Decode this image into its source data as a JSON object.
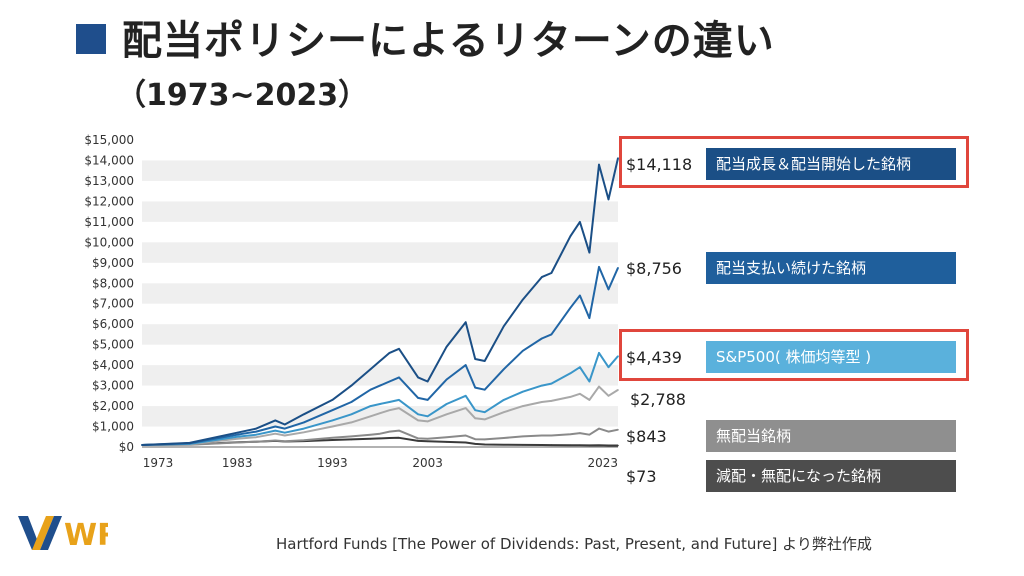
{
  "page": {
    "title": "配当ポリシーによるリターンの違い",
    "subtitle": "（1973~2023）",
    "footer": "Hartford Funds [The Power of Dividends: Past, Present, and Future] より弊社作成",
    "logo_text": "WR"
  },
  "colors": {
    "title_square": "#1f4e8c",
    "highlight_border": "#e0463c"
  },
  "chart_data": {
    "type": "line",
    "ylim": [
      0,
      15000
    ],
    "xlim": [
      1973,
      2023
    ],
    "y_ticks": [
      "$0",
      "$1,000",
      "$2,000",
      "$3,000",
      "$4,000",
      "$5,000",
      "$6,000",
      "$7,000",
      "$8,000",
      "$9,000",
      "$10,000",
      "$11,000",
      "$12,000",
      "$13,000",
      "$14,000",
      "$15,000"
    ],
    "x_ticks": [
      "1973",
      "1983",
      "1993",
      "2003",
      "2023"
    ],
    "x_tick_values": [
      1973,
      1983,
      1993,
      2003,
      2023
    ],
    "series": [
      {
        "name": "配当成長＆配当開始した銘柄",
        "final_label": "$14,118",
        "color": "#1b4f86",
        "highlighted": true,
        "x": [
          1973,
          1978,
          1983,
          1985,
          1987,
          1988,
          1990,
          1993,
          1995,
          1997,
          1998,
          1999,
          2000,
          2002,
          2003,
          2005,
          2007,
          2008,
          2009,
          2011,
          2013,
          2015,
          2016,
          2018,
          2019,
          2020,
          2021,
          2022,
          2023
        ],
        "values": [
          100,
          200,
          700,
          900,
          1300,
          1100,
          1600,
          2300,
          3000,
          3800,
          4200,
          4600,
          4800,
          3400,
          3200,
          4900,
          6100,
          4300,
          4200,
          5900,
          7200,
          8300,
          8500,
          10300,
          11000,
          9500,
          13800,
          12100,
          14118
        ]
      },
      {
        "name": "配当支払い続けた銘柄",
        "final_label": "$8,756",
        "color": "#2166a6",
        "highlighted": false,
        "x": [
          1973,
          1978,
          1983,
          1985,
          1987,
          1988,
          1990,
          1993,
          1995,
          1997,
          1998,
          1999,
          2000,
          2002,
          2003,
          2005,
          2007,
          2008,
          2009,
          2011,
          2013,
          2015,
          2016,
          2018,
          2019,
          2020,
          2021,
          2022,
          2023
        ],
        "values": [
          100,
          180,
          600,
          750,
          1000,
          900,
          1200,
          1800,
          2200,
          2800,
          3000,
          3200,
          3400,
          2400,
          2300,
          3300,
          4000,
          2900,
          2800,
          3800,
          4700,
          5300,
          5500,
          6800,
          7400,
          6300,
          8800,
          7700,
          8756
        ]
      },
      {
        "name": "S&P500( 株価均等型 )",
        "final_label": "$4,439",
        "color": "#3a96c9",
        "highlighted": true,
        "x": [
          1973,
          1978,
          1983,
          1985,
          1987,
          1988,
          1990,
          1993,
          1995,
          1997,
          1998,
          1999,
          2000,
          2002,
          2003,
          2005,
          2007,
          2008,
          2009,
          2011,
          2013,
          2015,
          2016,
          2018,
          2019,
          2020,
          2021,
          2022,
          2023
        ],
        "values": [
          100,
          150,
          500,
          600,
          800,
          700,
          900,
          1300,
          1600,
          2000,
          2100,
          2200,
          2300,
          1600,
          1500,
          2100,
          2500,
          1800,
          1700,
          2300,
          2700,
          3000,
          3100,
          3600,
          3900,
          3200,
          4600,
          3900,
          4439
        ]
      },
      {
        "name": "",
        "final_label": "$2,788",
        "color": "#a9a9a9",
        "highlighted": false,
        "x": [
          1973,
          1978,
          1983,
          1985,
          1987,
          1988,
          1990,
          1993,
          1995,
          1997,
          1998,
          1999,
          2000,
          2002,
          2003,
          2005,
          2007,
          2008,
          2009,
          2011,
          2013,
          2015,
          2016,
          2018,
          2019,
          2020,
          2021,
          2022,
          2023
        ],
        "values": [
          100,
          130,
          400,
          480,
          650,
          560,
          720,
          1000,
          1200,
          1500,
          1650,
          1800,
          1900,
          1300,
          1250,
          1600,
          1900,
          1400,
          1350,
          1700,
          2000,
          2200,
          2250,
          2450,
          2600,
          2300,
          2950,
          2500,
          2788
        ]
      },
      {
        "name": "無配当銘柄",
        "final_label": "$843",
        "color": "#8a8a8a",
        "highlighted": false,
        "x": [
          1973,
          1978,
          1983,
          1985,
          1987,
          1988,
          1990,
          1993,
          1995,
          1997,
          1998,
          1999,
          2000,
          2002,
          2003,
          2005,
          2007,
          2008,
          2009,
          2011,
          2013,
          2015,
          2016,
          2018,
          2019,
          2020,
          2021,
          2022,
          2023
        ],
        "values": [
          100,
          110,
          220,
          260,
          320,
          280,
          330,
          450,
          520,
          600,
          650,
          750,
          800,
          420,
          400,
          480,
          560,
          380,
          370,
          440,
          520,
          560,
          560,
          620,
          680,
          600,
          900,
          750,
          843
        ]
      },
      {
        "name": "減配・無配になった銘柄",
        "final_label": "$73",
        "color": "#3a3a3a",
        "highlighted": false,
        "x": [
          1973,
          1978,
          1983,
          1985,
          1987,
          1988,
          1990,
          1993,
          1995,
          1997,
          1998,
          1999,
          2000,
          2002,
          2003,
          2005,
          2007,
          2008,
          2009,
          2011,
          2013,
          2015,
          2016,
          2018,
          2019,
          2020,
          2021,
          2022,
          2023
        ],
        "values": [
          100,
          120,
          230,
          260,
          300,
          270,
          290,
          340,
          370,
          400,
          420,
          440,
          450,
          300,
          280,
          250,
          220,
          150,
          120,
          110,
          105,
          100,
          95,
          90,
          88,
          80,
          85,
          75,
          73
        ]
      }
    ]
  },
  "legend": [
    {
      "value": "$14,118",
      "label": "配当成長＆配当開始した銘柄",
      "box_color": "#1b4f86"
    },
    {
      "value": "$8,756",
      "label": "配当支払い続けた銘柄",
      "box_color": "#1f5f9c"
    },
    {
      "value": "$4,439",
      "label": "S&P500( 株価均等型 )",
      "box_color": "#5ab1dc"
    },
    {
      "value": "$2,788"
    },
    {
      "value": "$843",
      "label": "無配当銘柄",
      "box_color": "#8f8f8f"
    },
    {
      "value": "$73",
      "label": "減配・無配になった銘柄",
      "box_color": "#4d4d4d"
    }
  ]
}
